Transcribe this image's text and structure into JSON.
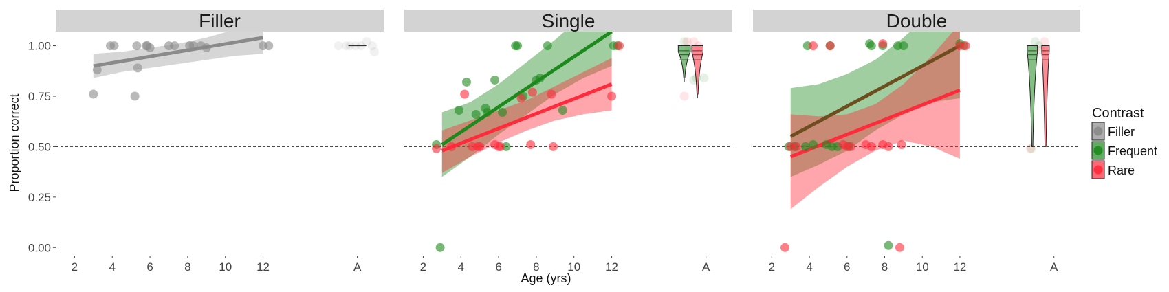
{
  "chart_data": {
    "type": "scatter",
    "xlabel": "Age (yrs)",
    "ylabel": "Proportion correct",
    "x_ticks": [
      "2",
      "4",
      "6",
      "8",
      "10",
      "12",
      "A"
    ],
    "x_tick_values": [
      2,
      4,
      6,
      8,
      10,
      12,
      17
    ],
    "xlim": [
      1.0,
      18.4
    ],
    "y_ticks": [
      "0.00",
      "0.25",
      "0.50",
      "0.75",
      "1.00"
    ],
    "y_tick_values": [
      0,
      0.25,
      0.5,
      0.75,
      1.0
    ],
    "ylim": [
      -0.04,
      1.07
    ],
    "reference_line": 0.5,
    "grid": false,
    "legend": {
      "title": "Contrast",
      "position": "right",
      "entries": [
        {
          "label": "Filler",
          "color": "#8a8a8a"
        },
        {
          "label": "Frequent",
          "color": "#1e8a1e"
        },
        {
          "label": "Rare",
          "color": "#ff2a3a"
        }
      ]
    },
    "colors": {
      "Filler": "#8a8a8a",
      "Frequent": "#1e8a1e",
      "Rare": "#ff2a3a",
      "overlap": "#6e4e1e"
    },
    "panels": [
      {
        "title": "Filler",
        "series": [
          {
            "name": "Filler",
            "points": [
              [
                3.0,
                0.76
              ],
              [
                3.2,
                0.88
              ],
              [
                3.9,
                1.0
              ],
              [
                4.1,
                1.0
              ],
              [
                5.2,
                0.75
              ],
              [
                5.3,
                1.0
              ],
              [
                5.35,
                0.89
              ],
              [
                5.8,
                1.0
              ],
              [
                5.85,
                1.0
              ],
              [
                6.0,
                0.99
              ],
              [
                7.0,
                1.0
              ],
              [
                7.3,
                1.0
              ],
              [
                8.1,
                1.0
              ],
              [
                8.3,
                1.0
              ],
              [
                8.7,
                1.0
              ],
              [
                9.0,
                0.99
              ],
              [
                12.0,
                1.0
              ],
              [
                12.3,
                1.0
              ]
            ],
            "fit": {
              "x": [
                3.0,
                12.0
              ],
              "y": [
                0.9,
                1.04
              ]
            },
            "band": {
              "x": [
                3.0,
                4.5,
                6.0,
                7.5,
                9.0,
                10.5,
                12.0
              ],
              "upper": [
                0.96,
                0.97,
                0.99,
                1.01,
                1.04,
                1.08,
                1.12
              ],
              "lower": [
                0.84,
                0.87,
                0.89,
                0.91,
                0.93,
                0.95,
                0.96
              ]
            },
            "adult_points": [
              [
                16.0,
                1.0
              ],
              [
                16.4,
                1.0
              ],
              [
                16.6,
                1.0
              ],
              [
                16.9,
                1.0
              ],
              [
                17.2,
                1.0
              ],
              [
                17.5,
                1.02
              ],
              [
                17.8,
                1.0
              ],
              [
                17.9,
                0.97
              ]
            ],
            "adult_median": 1.0,
            "adult_summary": {
              "type": "median-line",
              "x": 17.0,
              "y": 1.0
            }
          }
        ]
      },
      {
        "title": "Single",
        "series": [
          {
            "name": "Frequent",
            "points": [
              [
                2.7,
                0.51
              ],
              [
                2.9,
                0.0
              ],
              [
                3.9,
                0.68
              ],
              [
                4.3,
                0.82
              ],
              [
                4.8,
                0.66
              ],
              [
                5.3,
                0.69
              ],
              [
                5.4,
                0.67
              ],
              [
                5.8,
                0.83
              ],
              [
                6.2,
                0.67
              ],
              [
                6.4,
                0.5
              ],
              [
                6.9,
                1.0
              ],
              [
                7.0,
                1.0
              ],
              [
                7.3,
                0.75
              ],
              [
                8.0,
                0.83
              ],
              [
                8.2,
                0.84
              ],
              [
                8.6,
                1.0
              ],
              [
                9.4,
                0.68
              ],
              [
                12.1,
                1.0
              ],
              [
                12.3,
                1.0
              ]
            ],
            "fit": {
              "x": [
                3.0,
                12.0
              ],
              "y": [
                0.51,
                1.07
              ]
            },
            "band": {
              "x": [
                3.0,
                4.5,
                6.0,
                7.5,
                9.0,
                10.5,
                12.0
              ],
              "upper": [
                0.67,
                0.72,
                0.81,
                0.92,
                1.03,
                1.15,
                1.26
              ],
              "lower": [
                0.35,
                0.45,
                0.56,
                0.66,
                0.76,
                0.84,
                0.9
              ]
            },
            "adult_points": [
              [
                15.85,
                1.02
              ],
              [
                16.1,
                0.98
              ],
              [
                16.35,
                0.83
              ],
              [
                16.5,
                0.84
              ],
              [
                16.9,
                0.84
              ]
            ],
            "violin": {
              "x": 15.85,
              "half_width": 0.32,
              "y_top": 1.0,
              "y_bottom": 0.84,
              "y_wide": 0.97
            }
          },
          {
            "name": "Rare",
            "points": [
              [
                2.7,
                0.49
              ],
              [
                3.5,
                0.5
              ],
              [
                4.2,
                0.76
              ],
              [
                4.6,
                0.5
              ],
              [
                4.9,
                0.5
              ],
              [
                5.0,
                0.5
              ],
              [
                5.8,
                0.51
              ],
              [
                6.0,
                0.5
              ],
              [
                6.1,
                0.5
              ],
              [
                7.2,
                0.74
              ],
              [
                7.7,
                0.51
              ],
              [
                7.8,
                0.77
              ],
              [
                8.9,
                0.5
              ],
              [
                8.8,
                0.76
              ],
              [
                12.0,
                0.75
              ],
              [
                12.4,
                1.0
              ]
            ],
            "fit": {
              "x": [
                3.0,
                12.0
              ],
              "y": [
                0.48,
                0.81
              ]
            },
            "band": {
              "x": [
                3.0,
                4.5,
                6.0,
                7.5,
                9.0,
                10.5,
                12.0
              ],
              "upper": [
                0.58,
                0.63,
                0.68,
                0.73,
                0.8,
                0.87,
                0.94
              ],
              "lower": [
                0.37,
                0.45,
                0.52,
                0.58,
                0.63,
                0.66,
                0.68
              ]
            },
            "adult_points": [
              [
                15.85,
                0.75
              ],
              [
                16.0,
                1.02
              ],
              [
                16.35,
                1.02
              ],
              [
                16.6,
                1.0
              ]
            ],
            "violin": {
              "x": 16.55,
              "half_width": 0.3,
              "y_top": 1.0,
              "y_bottom": 0.76,
              "y_wide": 0.97
            }
          }
        ]
      },
      {
        "title": "Double",
        "series": [
          {
            "name": "Frequent",
            "points": [
              [
                2.9,
                0.5
              ],
              [
                3.2,
                0.5
              ],
              [
                3.8,
                0.5
              ],
              [
                3.9,
                1.0
              ],
              [
                4.2,
                0.51
              ],
              [
                4.9,
                0.51
              ],
              [
                5.1,
                1.0
              ],
              [
                5.2,
                0.5
              ],
              [
                5.5,
                0.5
              ],
              [
                6.1,
                0.5
              ],
              [
                7.2,
                1.01
              ],
              [
                7.3,
                1.0
              ],
              [
                7.9,
                1.0
              ],
              [
                8.2,
                0.01
              ],
              [
                8.7,
                1.0
              ],
              [
                9.0,
                1.0
              ],
              [
                12.0,
                1.01
              ],
              [
                12.2,
                1.0
              ]
            ],
            "fit": {
              "x": [
                3.0,
                12.0
              ],
              "y": [
                0.55,
                1.0
              ]
            },
            "band": {
              "x": [
                3.0,
                4.5,
                6.0,
                7.5,
                9.0,
                10.5,
                12.0
              ],
              "upper": [
                0.79,
                0.81,
                0.86,
                0.93,
                1.04,
                1.17,
                1.32
              ],
              "lower": [
                0.35,
                0.41,
                0.48,
                0.58,
                0.66,
                0.72,
                0.74
              ]
            },
            "adult_points": [
              [
                15.8,
                0.49
              ],
              [
                16.0,
                1.02
              ],
              [
                16.2,
                1.0
              ]
            ],
            "violin": {
              "x": 15.85,
              "half_width": 0.27,
              "y_top": 1.0,
              "y_bottom": 0.5,
              "y_wide": 0.97
            }
          },
          {
            "name": "Rare",
            "points": [
              [
                2.7,
                0.0
              ],
              [
                3.0,
                0.5
              ],
              [
                3.3,
                0.5
              ],
              [
                4.2,
                1.0
              ],
              [
                5.1,
                1.0
              ],
              [
                5.8,
                0.51
              ],
              [
                6.0,
                0.5
              ],
              [
                6.2,
                0.5
              ],
              [
                7.0,
                0.51
              ],
              [
                7.3,
                0.5
              ],
              [
                7.9,
                1.01
              ],
              [
                7.9,
                0.51
              ],
              [
                8.2,
                0.5
              ],
              [
                8.8,
                0.0
              ],
              [
                8.9,
                0.51
              ],
              [
                12.0,
                1.0
              ],
              [
                12.3,
                1.0
              ]
            ],
            "fit": {
              "x": [
                3.0,
                12.0
              ],
              "y": [
                0.45,
                0.78
              ]
            },
            "band": {
              "x": [
                3.0,
                4.5,
                6.0,
                7.5,
                9.0,
                10.5,
                12.0
              ],
              "upper": [
                0.66,
                0.65,
                0.66,
                0.71,
                0.81,
                0.95,
                1.11
              ],
              "lower": [
                0.19,
                0.3,
                0.4,
                0.48,
                0.53,
                0.5,
                0.44
              ]
            },
            "adult_points": [
              [
                15.75,
                0.49
              ],
              [
                16.3,
                0.98
              ],
              [
                16.5,
                1.02
              ]
            ],
            "violin": {
              "x": 16.55,
              "half_width": 0.2,
              "y_top": 1.0,
              "y_bottom": 0.5,
              "y_wide": 0.97
            }
          }
        ]
      }
    ]
  }
}
